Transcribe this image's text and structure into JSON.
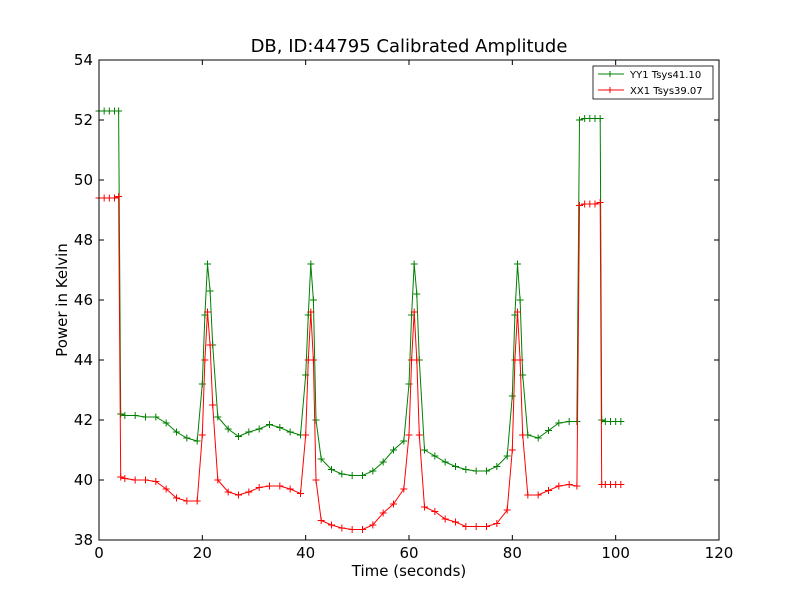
{
  "chart_data": {
    "type": "line",
    "title": "DB, ID:44795 Calibrated Amplitude",
    "xlabel": "Time (seconds)",
    "ylabel": "Power in Kelvin",
    "xlim": [
      0,
      120
    ],
    "ylim": [
      38,
      54
    ],
    "xticks": [
      "0",
      "20",
      "40",
      "60",
      "80",
      "100",
      "120"
    ],
    "yticks": [
      "38",
      "40",
      "42",
      "44",
      "46",
      "48",
      "50",
      "52",
      "54"
    ],
    "grid": false,
    "legend_position": "top-right",
    "series": [
      {
        "name": "YY1 Tsys41.10",
        "color": "#008000",
        "x": [
          0,
          1,
          2,
          3,
          3.8,
          4.2,
          5,
          7,
          9,
          11,
          13,
          15,
          17,
          19,
          20,
          20.5,
          21,
          21.5,
          22,
          23,
          25,
          27,
          29,
          31,
          33,
          35,
          37,
          39,
          40,
          40.5,
          41,
          41.5,
          42,
          43,
          45,
          47,
          49,
          51,
          53,
          55,
          57,
          59,
          60,
          60.5,
          61,
          61.5,
          62,
          63,
          65,
          67,
          69,
          71,
          73,
          75,
          77,
          79,
          80,
          80.5,
          81,
          81.5,
          82,
          83,
          85,
          87,
          89,
          91,
          92.5,
          93,
          94,
          95,
          96,
          97,
          97.3,
          98,
          99,
          100,
          101
        ],
        "values": [
          52.3,
          52.3,
          52.3,
          52.3,
          52.3,
          42.2,
          42.15,
          42.15,
          42.1,
          42.1,
          41.9,
          41.6,
          41.4,
          41.3,
          43.2,
          45.5,
          47.2,
          46.3,
          44.5,
          42.1,
          41.7,
          41.45,
          41.6,
          41.7,
          41.85,
          41.75,
          41.6,
          41.5,
          43.5,
          45.5,
          47.2,
          46.0,
          42.0,
          40.7,
          40.35,
          40.2,
          40.15,
          40.15,
          40.3,
          40.6,
          41.0,
          41.3,
          43.2,
          45.5,
          47.2,
          46.2,
          44.0,
          41.0,
          40.8,
          40.6,
          40.45,
          40.35,
          40.3,
          40.3,
          40.45,
          40.8,
          42.8,
          45.5,
          47.2,
          46.0,
          43.5,
          41.5,
          41.4,
          41.65,
          41.9,
          41.95,
          41.95,
          52.0,
          52.05,
          52.05,
          52.05,
          52.05,
          42.0,
          41.95,
          41.95,
          41.95,
          41.95
        ]
      },
      {
        "name": "XX1 Tsys39.07",
        "color": "#ff0000",
        "x": [
          0,
          1,
          2,
          3,
          3.8,
          4.2,
          5,
          7,
          9,
          11,
          13,
          15,
          17,
          19,
          20,
          20.5,
          21,
          21.5,
          22,
          23,
          25,
          27,
          29,
          31,
          33,
          35,
          37,
          39,
          40,
          40.5,
          41,
          41.5,
          42,
          43,
          45,
          47,
          49,
          51,
          53,
          55,
          57,
          59,
          60,
          60.5,
          61,
          61.5,
          62,
          63,
          65,
          67,
          69,
          71,
          73,
          75,
          77,
          79,
          80,
          80.5,
          81,
          81.5,
          82,
          83,
          85,
          87,
          89,
          91,
          92.5,
          93,
          94,
          95,
          96,
          97,
          97.3,
          98,
          99,
          100,
          101
        ],
        "values": [
          49.4,
          49.4,
          49.4,
          49.4,
          49.45,
          40.1,
          40.05,
          40.0,
          40.0,
          39.95,
          39.7,
          39.4,
          39.3,
          39.3,
          41.5,
          44.0,
          45.6,
          44.5,
          42.5,
          40.0,
          39.6,
          39.5,
          39.6,
          39.75,
          39.8,
          39.8,
          39.7,
          39.55,
          41.5,
          44.0,
          45.6,
          44.0,
          40.0,
          38.65,
          38.5,
          38.4,
          38.35,
          38.35,
          38.5,
          38.9,
          39.2,
          39.7,
          41.5,
          44.0,
          45.6,
          44.0,
          41.5,
          39.1,
          38.95,
          38.7,
          38.6,
          38.45,
          38.45,
          38.45,
          38.55,
          39.0,
          41.0,
          44.0,
          45.6,
          44.0,
          41.5,
          39.5,
          39.5,
          39.65,
          39.8,
          39.85,
          39.8,
          49.15,
          49.2,
          49.2,
          49.2,
          49.25,
          39.85,
          39.85,
          39.85,
          39.85,
          39.85
        ]
      }
    ]
  }
}
